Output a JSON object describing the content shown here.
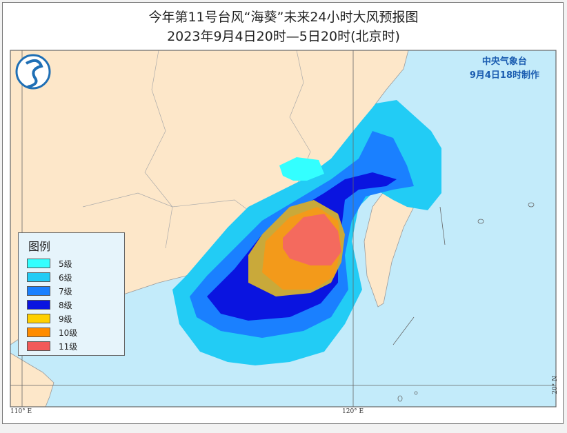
{
  "header": {
    "title": "今年第11号台风“海葵”未来24小时大风预报图",
    "subtitle": "2023年9月4日20时—5日20时(北京时)"
  },
  "agency": {
    "name": "中央气象台",
    "issued": "9月4日18时制作"
  },
  "legend": {
    "title": "图例",
    "items": [
      {
        "label": "5级",
        "color": "#33ffff"
      },
      {
        "label": "6级",
        "color": "#22ccf5"
      },
      {
        "label": "7级",
        "color": "#1a80ff"
      },
      {
        "label": "8级",
        "color": "#0a14e0"
      },
      {
        "label": "9级",
        "color": "#ffd000"
      },
      {
        "label": "10级",
        "color": "#ff8c00"
      },
      {
        "label": "11级",
        "color": "#f25a5a"
      }
    ]
  },
  "axes": {
    "lon_labels": [
      "110° E",
      "120° E"
    ],
    "lat_labels": [
      "20° N"
    ]
  },
  "colors": {
    "land": "#fde7c9",
    "sea": "#c3ebfa"
  }
}
